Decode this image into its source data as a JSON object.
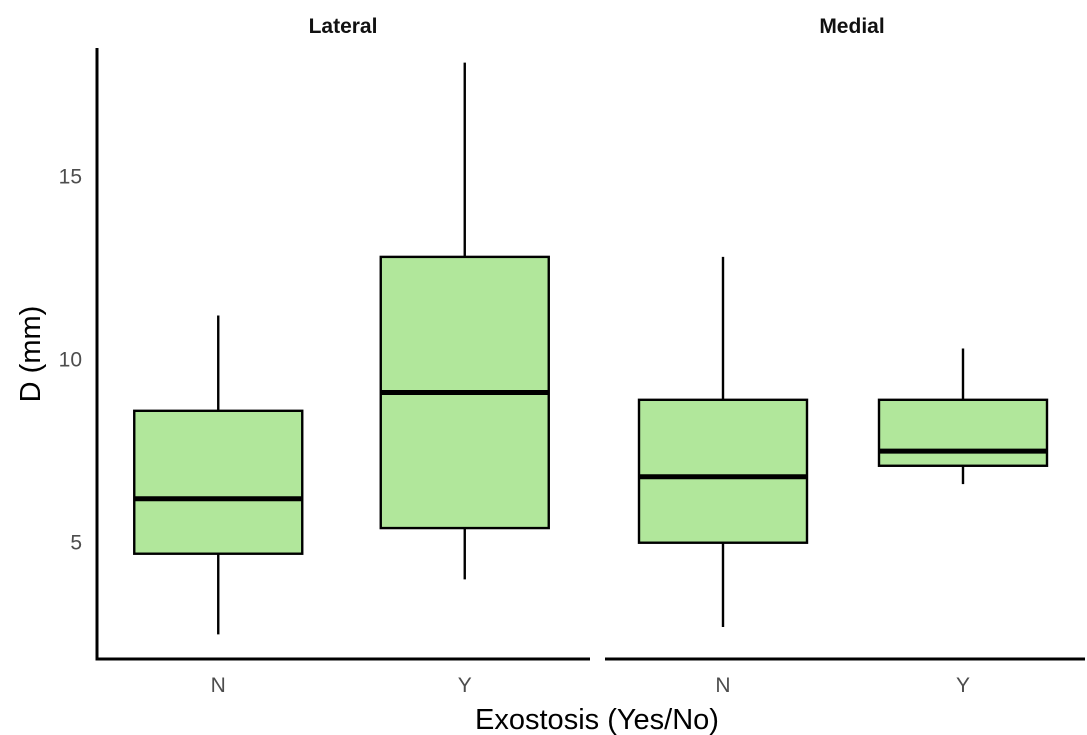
{
  "chart_data": {
    "type": "boxplot",
    "xlabel": "Exostosis (Yes/No)",
    "ylabel": "D (mm)",
    "ylim": [
      1.8,
      18.5
    ],
    "yticks": [
      5,
      10,
      15
    ],
    "grid": false,
    "box_fill": "#b1e79b",
    "stroke_color": "#000000",
    "facets": [
      {
        "title": "Lateral",
        "categories": [
          "N",
          "Y"
        ],
        "boxes": [
          {
            "category": "N",
            "whisker_low": 2.5,
            "q1": 4.7,
            "median": 6.2,
            "q3": 8.6,
            "whisker_high": 11.2
          },
          {
            "category": "Y",
            "whisker_low": 4.0,
            "q1": 5.4,
            "median": 9.1,
            "q3": 12.8,
            "whisker_high": 18.1
          }
        ]
      },
      {
        "title": "Medial",
        "categories": [
          "N",
          "Y"
        ],
        "boxes": [
          {
            "category": "N",
            "whisker_low": 2.7,
            "q1": 5.0,
            "median": 6.8,
            "q3": 8.9,
            "whisker_high": 12.8
          },
          {
            "category": "Y",
            "whisker_low": 6.6,
            "q1": 7.1,
            "median": 7.5,
            "q3": 8.9,
            "whisker_high": 10.3
          }
        ]
      }
    ]
  }
}
